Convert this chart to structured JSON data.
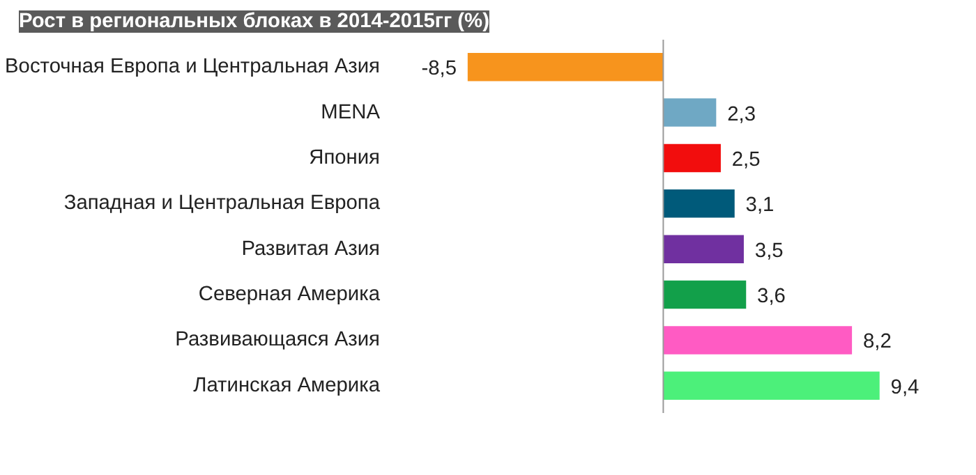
{
  "chart_data": {
    "type": "bar",
    "orientation": "horizontal",
    "title": "Рост в региональных блоках в 2014-2015гг (%)",
    "categories": [
      "Восточная Европа и Центральная Азия",
      "MENA",
      "Япония",
      "Западная и Центральная Европа",
      "Развитая Азия",
      "Северная Америка",
      "Развивающаяся Азия",
      "Латинская Америка"
    ],
    "values": [
      -8.5,
      2.3,
      2.5,
      3.1,
      3.5,
      3.6,
      8.2,
      9.4
    ],
    "colors": [
      "#f7941d",
      "#6fa8c4",
      "#f20d0d",
      "#005a7a",
      "#7030a0",
      "#12a04a",
      "#ff5bc3",
      "#4cf07a"
    ],
    "value_labels": [
      "-8,5",
      "2,3",
      "2,5",
      "3,1",
      "3,5",
      "3,6",
      "8,2",
      "9,4"
    ],
    "grid": false
  }
}
